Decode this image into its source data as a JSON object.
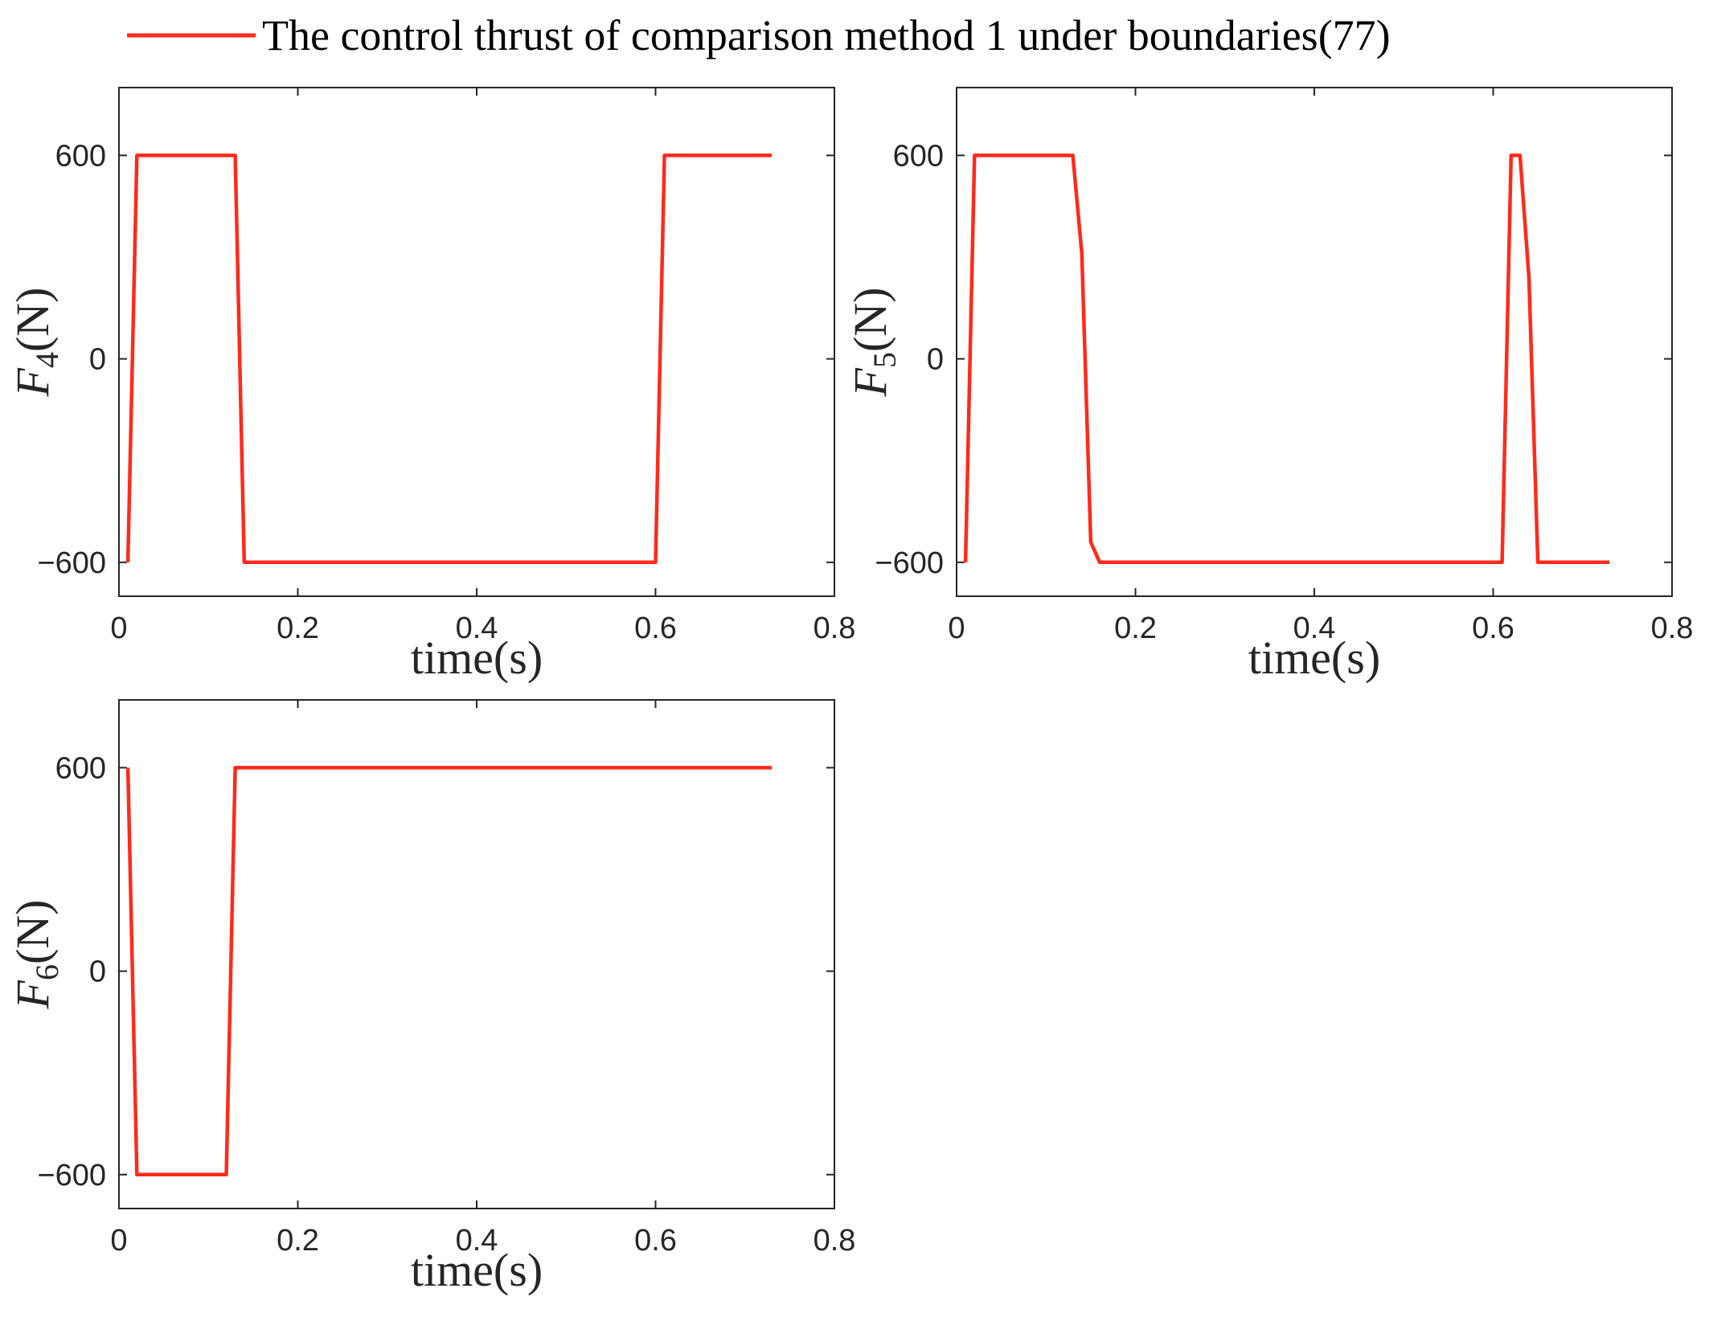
{
  "legend": {
    "label": "The control thrust of comparison method 1 under boundaries(77)"
  },
  "colors": {
    "series": "#ff2a1a",
    "axes": "#262626"
  },
  "chart_data": [
    {
      "type": "line",
      "ylabel": {
        "symbol": "F",
        "subscript": "4",
        "unit": "(N)"
      },
      "xlabel": "time(s)",
      "xlim": [
        0,
        0.8
      ],
      "ylim": [
        -700,
        800
      ],
      "xticks": [
        0,
        0.2,
        0.4,
        0.6,
        0.8
      ],
      "xtick_labels": [
        "0",
        "0.2",
        "0.4",
        "0.6",
        "0.8"
      ],
      "yticks": [
        -600,
        0,
        600
      ],
      "ytick_labels": [
        "−600",
        "0",
        "600"
      ],
      "grid": false,
      "series": [
        {
          "name": "The control thrust of comparison method 1 under boundaries(77)",
          "x": [
            0.01,
            0.02,
            0.13,
            0.14,
            0.6,
            0.61,
            0.73
          ],
          "y": [
            -600,
            600,
            600,
            -600,
            -600,
            600,
            600
          ]
        }
      ]
    },
    {
      "type": "line",
      "ylabel": {
        "symbol": "F",
        "subscript": "5",
        "unit": "(N)"
      },
      "xlabel": "time(s)",
      "xlim": [
        0,
        0.8
      ],
      "ylim": [
        -700,
        800
      ],
      "xticks": [
        0,
        0.2,
        0.4,
        0.6,
        0.8
      ],
      "xtick_labels": [
        "0",
        "0.2",
        "0.4",
        "0.6",
        "0.8"
      ],
      "yticks": [
        -600,
        0,
        600
      ],
      "ytick_labels": [
        "−600",
        "0",
        "600"
      ],
      "grid": false,
      "series": [
        {
          "name": "The control thrust of comparison method 1 under boundaries(77)",
          "x": [
            0.01,
            0.02,
            0.13,
            0.14,
            0.15,
            0.16,
            0.61,
            0.62,
            0.63,
            0.64,
            0.65,
            0.73
          ],
          "y": [
            -600,
            600,
            600,
            310,
            -540,
            -600,
            -600,
            600,
            600,
            240,
            -600,
            -600
          ]
        }
      ]
    },
    {
      "type": "line",
      "ylabel": {
        "symbol": "F",
        "subscript": "6",
        "unit": "(N)"
      },
      "xlabel": "time(s)",
      "xlim": [
        0,
        0.8
      ],
      "ylim": [
        -700,
        800
      ],
      "xticks": [
        0,
        0.2,
        0.4,
        0.6,
        0.8
      ],
      "xtick_labels": [
        "0",
        "0.2",
        "0.4",
        "0.6",
        "0.8"
      ],
      "yticks": [
        -600,
        0,
        600
      ],
      "ytick_labels": [
        "−600",
        "0",
        "600"
      ],
      "grid": false,
      "series": [
        {
          "name": "The control thrust of comparison method 1 under boundaries(77)",
          "x": [
            0.01,
            0.02,
            0.12,
            0.13,
            0.73
          ],
          "y": [
            600,
            -600,
            -600,
            600,
            600
          ]
        }
      ]
    }
  ]
}
